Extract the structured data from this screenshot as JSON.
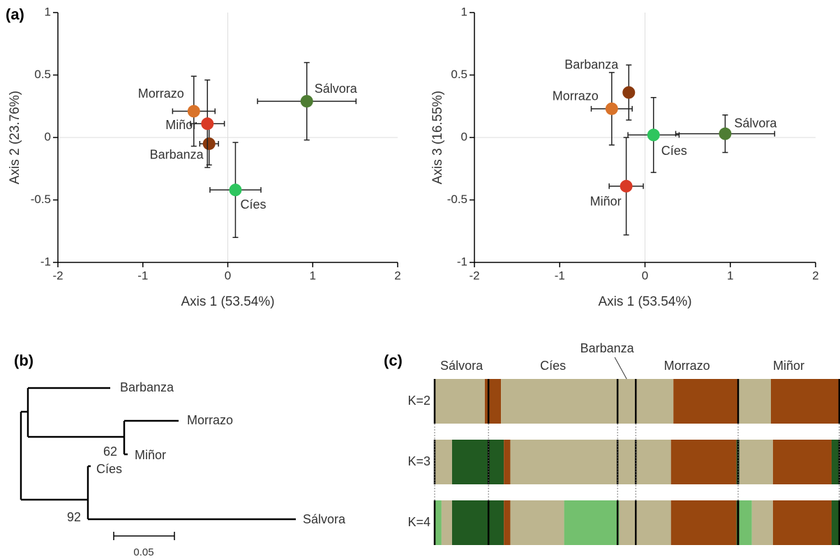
{
  "panel_labels": [
    "(a)",
    "(b)",
    "(c)"
  ],
  "chart_data": [
    {
      "type": "scatter",
      "xlabel": "Axis 1 (53.54%)",
      "ylabel": "Axis 2 (23.76%)",
      "xlim": [
        -2,
        2
      ],
      "ylim": [
        -1,
        1
      ],
      "xticks": [
        -2,
        -1,
        0,
        1,
        2
      ],
      "yticks": [
        -1,
        -0.5,
        0,
        0.5,
        1
      ],
      "zero_lines": true,
      "series": [
        {
          "name": "Barbanza",
          "color": "#8b3a0e",
          "x": -0.22,
          "y": -0.05,
          "xerr": 0.11,
          "yerr": 0.17
        },
        {
          "name": "Morrazo",
          "color": "#d9732a",
          "x": -0.4,
          "y": 0.21,
          "xerr": 0.25,
          "yerr": 0.28
        },
        {
          "name": "Miñor",
          "color": "#d93a26",
          "x": -0.24,
          "y": 0.11,
          "xerr": 0.2,
          "yerr": 0.35
        },
        {
          "name": "Cíes",
          "color": "#2ec55e",
          "x": 0.09,
          "y": -0.42,
          "xerr": 0.3,
          "yerr": 0.38
        },
        {
          "name": "Sálvora",
          "color": "#4e7d33",
          "x": 0.93,
          "y": 0.29,
          "xerr": 0.58,
          "yerr": 0.31
        }
      ]
    },
    {
      "type": "scatter",
      "xlabel": "Axis 1 (53.54%)",
      "ylabel": "Axis 3 (16.55%)",
      "xlim": [
        -2,
        2
      ],
      "ylim": [
        -1,
        1
      ],
      "xticks": [
        -2,
        -1,
        0,
        1,
        2
      ],
      "yticks": [
        -1,
        -0.5,
        0,
        0.5,
        1
      ],
      "zero_lines": true,
      "series": [
        {
          "name": "Barbanza",
          "color": "#8b3a0e",
          "x": -0.19,
          "y": 0.36,
          "xerr": 0.06,
          "yerr": 0.22
        },
        {
          "name": "Morrazo",
          "color": "#d9732a",
          "x": -0.39,
          "y": 0.23,
          "xerr": 0.24,
          "yerr": 0.29
        },
        {
          "name": "Miñor",
          "color": "#d93a26",
          "x": -0.22,
          "y": -0.39,
          "xerr": 0.2,
          "yerr": 0.39
        },
        {
          "name": "Cíes",
          "color": "#2ec55e",
          "x": 0.1,
          "y": 0.02,
          "xerr": 0.3,
          "yerr": 0.3
        },
        {
          "name": "Sálvora",
          "color": "#4e7d33",
          "x": 0.94,
          "y": 0.03,
          "xerr": 0.58,
          "yerr": 0.15
        }
      ]
    }
  ],
  "tree": {
    "leaves": [
      "Barbanza",
      "Morrazo",
      "Miñor",
      "Cíes",
      "Sálvora"
    ],
    "support": [
      62,
      92
    ],
    "scale_label": 0.05
  },
  "structure": {
    "populations": [
      {
        "name": "Sálvora",
        "width": 0.133
      },
      {
        "name": "Cíes",
        "width": 0.319
      },
      {
        "name": "Barbanza",
        "width": 0.045
      },
      {
        "name": "Morrazo",
        "width": 0.253
      },
      {
        "name": "Miñor",
        "width": 0.25
      }
    ],
    "rows": [
      {
        "label": "K=2",
        "segments": [
          {
            "color": "#bdb58f",
            "value": 0.124
          },
          {
            "color": "#98470f",
            "value": 0.04
          },
          {
            "color": "#bdb58f",
            "value": 0.426
          },
          {
            "color": "#98470f",
            "value": 0.16
          },
          {
            "color": "#bdb58f",
            "value": 0.081
          },
          {
            "color": "#98470f",
            "value": 0.169
          }
        ]
      },
      {
        "label": "K=3",
        "segments": [
          {
            "color": "#bdb58f",
            "value": 0.043
          },
          {
            "color": "#215a21",
            "value": 0.128
          },
          {
            "color": "#98470f",
            "value": 0.016
          },
          {
            "color": "#bdb58f",
            "value": 0.397
          },
          {
            "color": "#98470f",
            "value": 0.162
          },
          {
            "color": "#215a21",
            "value": 0.007
          },
          {
            "color": "#bdb58f",
            "value": 0.083
          },
          {
            "color": "#98470f",
            "value": 0.145
          },
          {
            "color": "#215a21",
            "value": 0.019
          }
        ]
      },
      {
        "label": "K=4",
        "segments": [
          {
            "color": "#73c06e",
            "value": 0.017
          },
          {
            "color": "#bdb58f",
            "value": 0.026
          },
          {
            "color": "#215a21",
            "value": 0.128
          },
          {
            "color": "#98470f",
            "value": 0.016
          },
          {
            "color": "#bdb58f",
            "value": 0.133
          },
          {
            "color": "#73c06e",
            "value": 0.136
          },
          {
            "color": "#bdb58f",
            "value": 0.128
          },
          {
            "color": "#98470f",
            "value": 0.162
          },
          {
            "color": "#215a21",
            "value": 0.007
          },
          {
            "color": "#73c06e",
            "value": 0.031
          },
          {
            "color": "#bdb58f",
            "value": 0.052
          },
          {
            "color": "#98470f",
            "value": 0.145
          },
          {
            "color": "#215a21",
            "value": 0.019
          }
        ]
      }
    ]
  }
}
